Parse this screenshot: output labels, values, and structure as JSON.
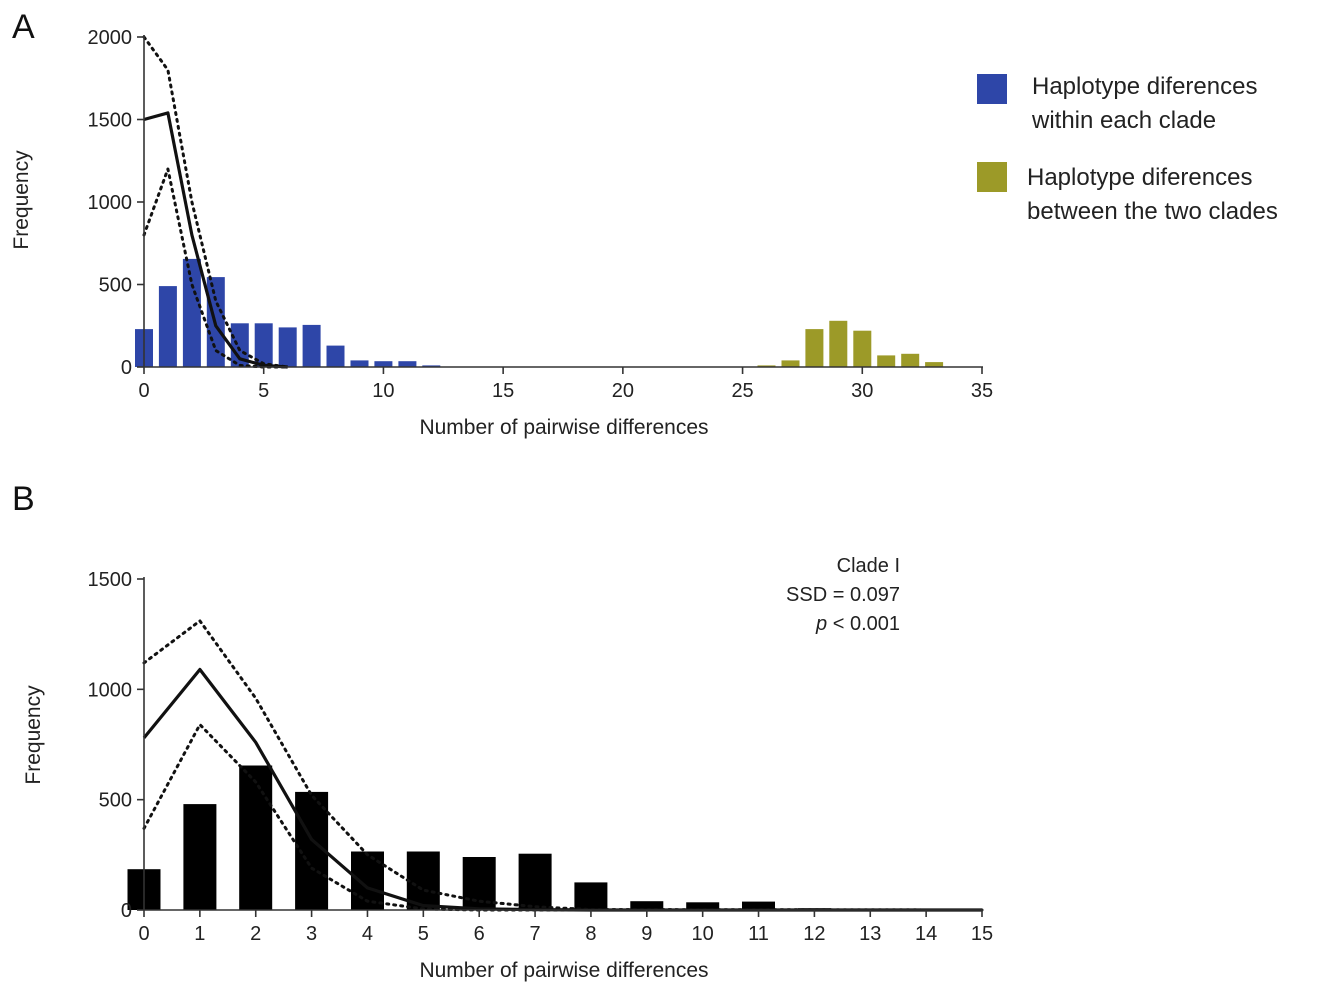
{
  "chart_data": [
    {
      "panel_label": "A",
      "type": "bar",
      "xlabel": "Number of pairwise differences",
      "ylabel": "Frequency",
      "xlim": [
        0,
        35
      ],
      "ylim": [
        0,
        2000
      ],
      "xticks": [
        0,
        5,
        10,
        15,
        20,
        25,
        30,
        35
      ],
      "yticks": [
        0,
        500,
        1000,
        1500,
        2000
      ],
      "grid": false,
      "legend_position": "right",
      "series": [
        {
          "name": "Haplotype diferences within each clade",
          "legend_lines": [
            "Haplotype diferences",
            "within each clade"
          ],
          "color": "#2e46a8",
          "x": [
            0,
            1,
            2,
            3,
            4,
            5,
            6,
            7,
            8,
            9,
            10,
            11,
            12
          ],
          "values": [
            230,
            490,
            655,
            545,
            265,
            265,
            240,
            255,
            130,
            40,
            35,
            35,
            10
          ]
        },
        {
          "name": "Haplotype diferences between the two clades",
          "legend_lines": [
            "Haplotype diferences",
            "between the two clades"
          ],
          "color": "#9c9a28",
          "x": [
            26,
            27,
            28,
            29,
            30,
            31,
            32,
            33
          ],
          "values": [
            10,
            40,
            230,
            280,
            220,
            70,
            80,
            30
          ]
        }
      ],
      "lines": [
        {
          "role": "expected",
          "style": "solid",
          "x": [
            0,
            1,
            2,
            3,
            4,
            5,
            6
          ],
          "y": [
            1500,
            1540,
            800,
            250,
            50,
            10,
            0
          ]
        },
        {
          "role": "upper bound",
          "style": "dotted",
          "x": [
            0,
            1,
            2,
            3,
            4,
            5,
            6
          ],
          "y": [
            2000,
            1800,
            1000,
            400,
            100,
            20,
            0
          ]
        },
        {
          "role": "lower bound",
          "style": "dotted",
          "x": [
            0,
            1,
            2,
            3,
            4,
            5,
            6
          ],
          "y": [
            800,
            1200,
            500,
            100,
            10,
            0,
            0
          ]
        }
      ]
    },
    {
      "panel_label": "B",
      "type": "bar",
      "xlabel": "Number of pairwise differences",
      "ylabel": "Frequency",
      "xlim": [
        0,
        15
      ],
      "ylim": [
        0,
        1500
      ],
      "xticks": [
        0,
        1,
        2,
        3,
        4,
        5,
        6,
        7,
        8,
        9,
        10,
        11,
        12,
        13,
        14,
        15
      ],
      "yticks": [
        0,
        500,
        1000,
        1500
      ],
      "grid": false,
      "annotation": {
        "line1": "Clade I",
        "line2": "SSD = 0.097",
        "line3_italic": "p",
        "line3_rest": " < 0.001"
      },
      "series": [
        {
          "color": "#000000",
          "x": [
            0,
            1,
            2,
            3,
            4,
            5,
            6,
            7,
            8,
            9,
            10,
            11,
            12,
            13
          ],
          "values": [
            185,
            480,
            655,
            535,
            265,
            265,
            240,
            255,
            125,
            40,
            35,
            38,
            8,
            3
          ]
        }
      ],
      "lines": [
        {
          "role": "expected",
          "style": "solid",
          "x": [
            0,
            1,
            2,
            3,
            4,
            5,
            6,
            7,
            8,
            15
          ],
          "y": [
            780,
            1090,
            760,
            320,
            100,
            20,
            5,
            2,
            0,
            0
          ]
        },
        {
          "role": "upper bound",
          "style": "dotted",
          "x": [
            0,
            1,
            2,
            3,
            4,
            5,
            6,
            7,
            8,
            15
          ],
          "y": [
            1120,
            1310,
            960,
            520,
            250,
            90,
            40,
            15,
            2,
            0
          ]
        },
        {
          "role": "lower bound",
          "style": "dotted",
          "x": [
            0,
            1,
            2,
            3,
            4,
            5,
            6,
            7,
            8,
            15
          ],
          "y": [
            370,
            840,
            580,
            190,
            40,
            5,
            0,
            0,
            0,
            0
          ]
        }
      ]
    }
  ]
}
